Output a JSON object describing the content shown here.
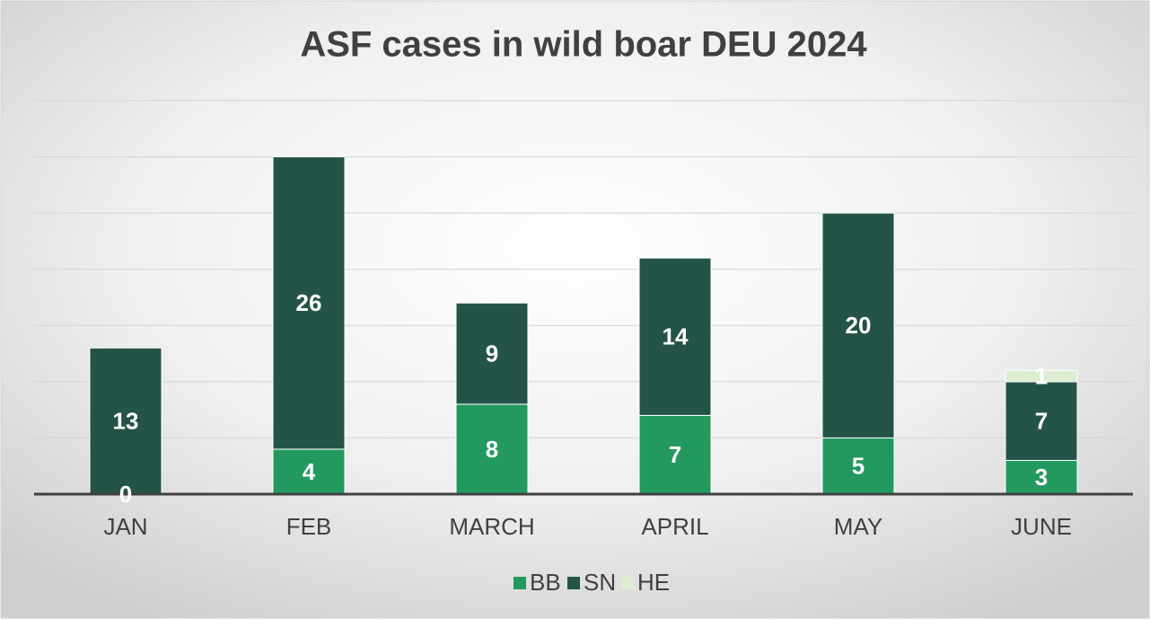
{
  "chart_data": {
    "type": "stacked_bar",
    "title": "ASF cases in wild boar DEU 2024",
    "categories": [
      "JAN",
      "FEB",
      "MARCH",
      "APRIL",
      "MAY",
      "JUNE"
    ],
    "series": [
      {
        "name": "BB",
        "color": "#23995f",
        "values": [
          0,
          4,
          8,
          7,
          5,
          3
        ]
      },
      {
        "name": "SN",
        "color": "#245447",
        "values": [
          13,
          26,
          9,
          14,
          20,
          7
        ]
      },
      {
        "name": "HE",
        "color": "#dcedd3",
        "values": [
          null,
          null,
          null,
          null,
          null,
          1
        ]
      }
    ],
    "ylim": [
      0,
      35
    ],
    "yticks": [
      0,
      5,
      10,
      15,
      20,
      25,
      30,
      35
    ],
    "grid": true
  }
}
